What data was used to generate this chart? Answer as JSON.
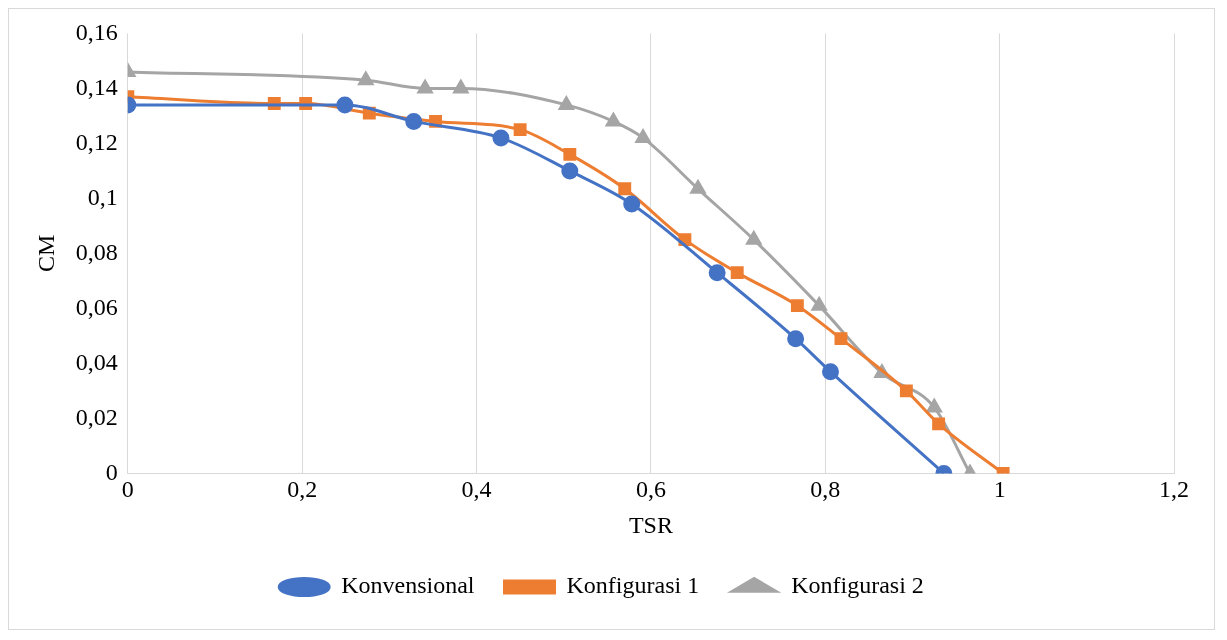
{
  "chart_data": {
    "type": "line",
    "xlabel": "TSR",
    "ylabel": "CM",
    "xlim": [
      0,
      1.2
    ],
    "xticks": [
      {
        "value": 0,
        "label": "0"
      },
      {
        "value": 0.2,
        "label": "0,2"
      },
      {
        "value": 0.4,
        "label": "0,4"
      },
      {
        "value": 0.6,
        "label": "0,6"
      },
      {
        "value": 0.8,
        "label": "0,8"
      },
      {
        "value": 1,
        "label": "1"
      },
      {
        "value": 1.2,
        "label": "1,2"
      }
    ],
    "ylim": [
      0,
      0.16
    ],
    "yticks": [
      {
        "value": 0,
        "label": "0"
      },
      {
        "value": 0.02,
        "label": "0,02"
      },
      {
        "value": 0.04,
        "label": "0,04"
      },
      {
        "value": 0.06,
        "label": "0,06"
      },
      {
        "value": 0.08,
        "label": "0,08"
      },
      {
        "value": 0.1,
        "label": "0,1"
      },
      {
        "value": 0.12,
        "label": "0,12"
      },
      {
        "value": 0.14,
        "label": "0,14"
      },
      {
        "value": 0.16,
        "label": "0,16"
      }
    ],
    "grid": "x",
    "legend": "bottom",
    "line_style": "solid",
    "series": [
      {
        "name": "Konvensional",
        "color": "#4472c4",
        "marker": "circle",
        "x": [
          0,
          0.249,
          0.328,
          0.428,
          0.507,
          0.578,
          0.676,
          0.766,
          0.806,
          0.936
        ],
        "values": [
          0.134,
          0.134,
          0.128,
          0.122,
          0.11,
          0.098,
          0.073,
          0.049,
          0.037,
          0
        ]
      },
      {
        "name": "Konfigurasi 1",
        "color": "#ed7d31",
        "marker": "square",
        "x": [
          0,
          0.168,
          0.204,
          0.277,
          0.353,
          0.45,
          0.507,
          0.57,
          0.639,
          0.699,
          0.768,
          0.818,
          0.893,
          0.93,
          1.004
        ],
        "values": [
          0.137,
          0.1345,
          0.1345,
          0.131,
          0.128,
          0.125,
          0.116,
          0.1035,
          0.085,
          0.073,
          0.061,
          0.049,
          0.03,
          0.018,
          0
        ]
      },
      {
        "name": "Konfigurasi 2",
        "color": "#a5a5a5",
        "marker": "triangle",
        "x": [
          0,
          0.273,
          0.341,
          0.382,
          0.503,
          0.557,
          0.591,
          0.654,
          0.718,
          0.793,
          0.865,
          0.925,
          0.966
        ],
        "values": [
          0.146,
          0.143,
          0.14,
          0.14,
          0.134,
          0.128,
          0.122,
          0.1035,
          0.085,
          0.061,
          0.0365,
          0.024,
          0
        ]
      }
    ]
  }
}
